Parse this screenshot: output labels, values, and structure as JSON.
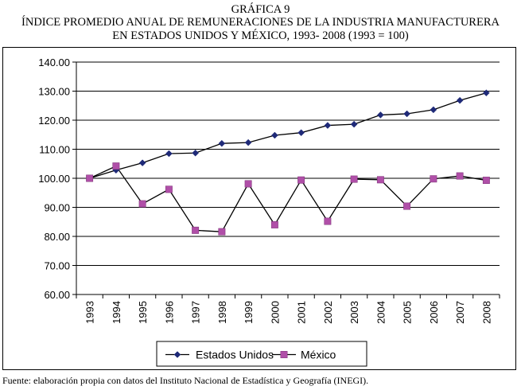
{
  "header": {
    "label": "GRÁFICA 9",
    "line1": "ÍNDICE PROMEDIO ANUAL DE REMUNERACIONES DE LA INDUSTRIA MANUFACTURERA",
    "line2": "EN ESTADOS UNIDOS Y MÉXICO, 1993- 2008 (1993 = 100)"
  },
  "source": "Fuente: elaboración propia con datos del Instituto Nacional de Estadística y Geografía (INEGI).",
  "colors": {
    "us": "#1F2A78",
    "mx": "#B04FA8",
    "line": "#000000",
    "grid": "#000000"
  },
  "chart_data": {
    "type": "line",
    "title": "ÍNDICE PROMEDIO ANUAL DE REMUNERACIONES DE LA INDUSTRIA MANUFACTURERA EN ESTADOS UNIDOS Y MÉXICO, 1993- 2008 (1993 = 100)",
    "xlabel": "",
    "ylabel": "",
    "ylim": [
      60,
      140
    ],
    "yticks": [
      "60.00",
      "70.00",
      "80.00",
      "90.00",
      "100.00",
      "110.00",
      "120.00",
      "130.00",
      "140.00"
    ],
    "categories": [
      "1993",
      "1994",
      "1995",
      "1996",
      "1997",
      "1998",
      "1999",
      "2000",
      "2001",
      "2002",
      "2003",
      "2004",
      "2005",
      "2006",
      "2007",
      "2008"
    ],
    "grid": true,
    "legend": "bottom",
    "series": [
      {
        "name": "Estados Unidos",
        "marker": "diamond",
        "values": [
          100.0,
          102.8,
          105.3,
          108.5,
          108.7,
          112.0,
          112.3,
          114.8,
          115.7,
          118.2,
          118.6,
          121.8,
          122.2,
          123.6,
          126.8,
          129.4
        ]
      },
      {
        "name": "México",
        "marker": "square",
        "values": [
          100.0,
          104.2,
          91.2,
          96.2,
          82.1,
          81.6,
          98.1,
          84.0,
          99.4,
          85.2,
          99.7,
          99.5,
          90.4,
          99.8,
          100.8,
          99.3
        ]
      }
    ]
  }
}
